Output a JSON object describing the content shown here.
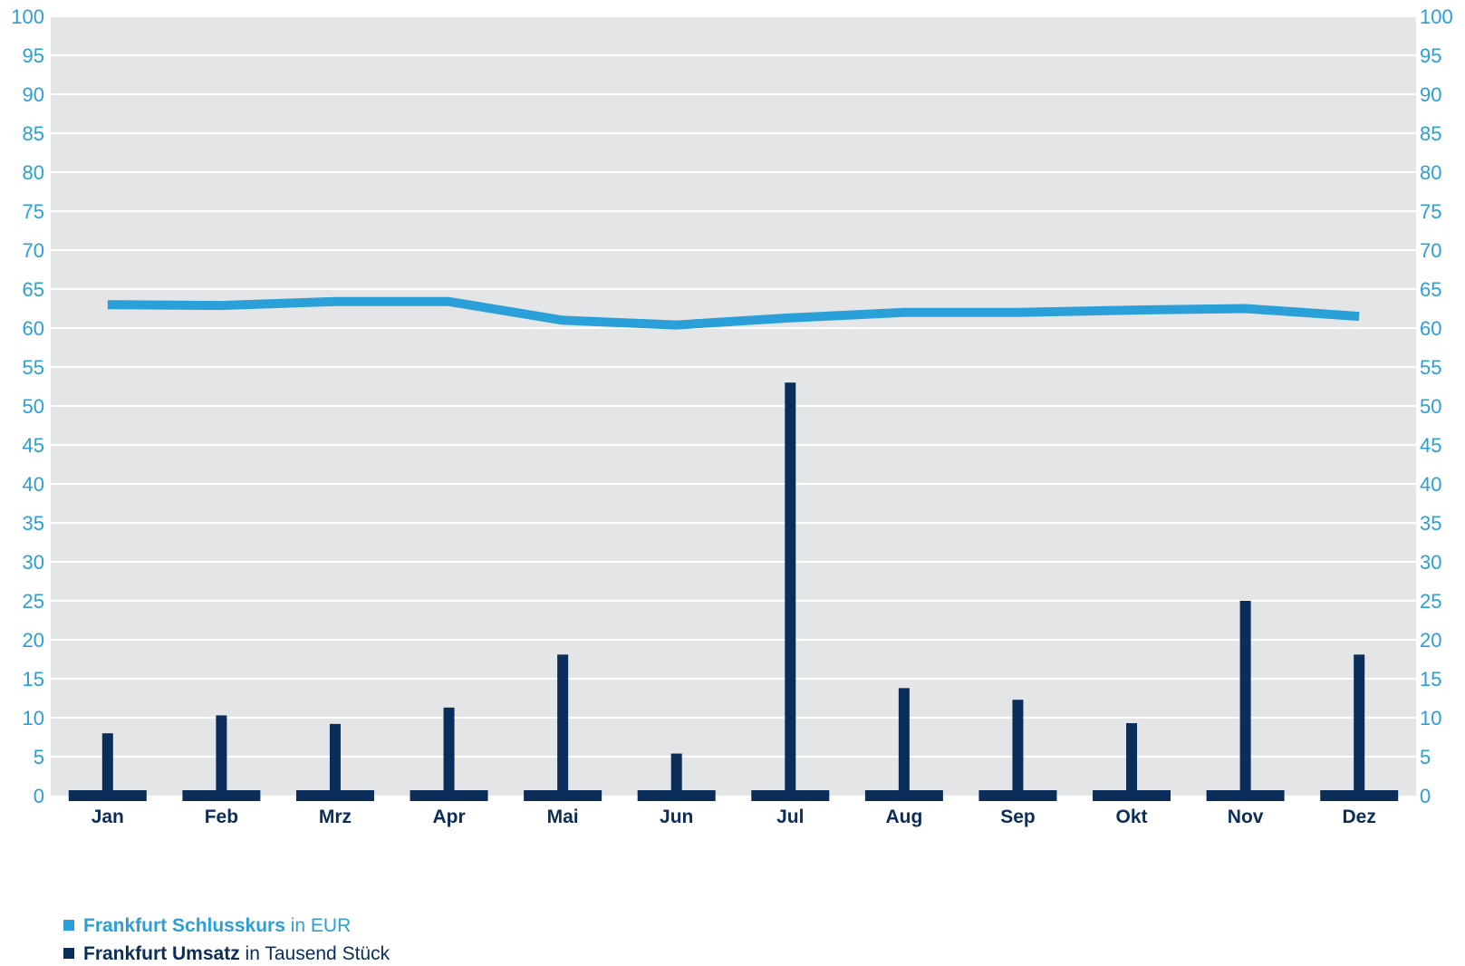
{
  "chart_data": {
    "type": "bar",
    "categories": [
      "Jan",
      "Feb",
      "Mrz",
      "Apr",
      "Mai",
      "Jun",
      "Jul",
      "Aug",
      "Sep",
      "Okt",
      "Nov",
      "Dez"
    ],
    "series": [
      {
        "name": "Frankfurt Schlusskurs",
        "unit": "in EUR",
        "type": "line",
        "color": "#2a9fd8",
        "values": [
          63.0,
          62.9,
          63.4,
          63.4,
          61.0,
          60.4,
          61.3,
          62.0,
          62.0,
          62.3,
          62.5,
          61.5
        ]
      },
      {
        "name": "Frankfurt Umsatz",
        "unit": "in Tausend Stück",
        "type": "bar",
        "color": "#0a2d5a",
        "values": [
          8,
          10.3,
          9.2,
          11.3,
          18.1,
          5.4,
          53,
          13.8,
          12.3,
          9.3,
          25,
          18.1
        ]
      }
    ],
    "yticks": [
      0,
      5,
      10,
      15,
      20,
      25,
      30,
      35,
      40,
      45,
      50,
      55,
      60,
      65,
      70,
      75,
      80,
      85,
      90,
      95,
      100
    ],
    "ylim": [
      0,
      100
    ],
    "y2lim": [
      0,
      100
    ],
    "grid": true,
    "legend_position": "bottom-left"
  },
  "legend": [
    {
      "bold": "Frankfurt Schlusskurs",
      "rest": " in EUR"
    },
    {
      "bold": "Frankfurt Umsatz",
      "rest": " in Tausend Stück"
    }
  ],
  "colors": {
    "background": "#e4e5e7",
    "grid": "#ffffff",
    "line": "#2a9fd8",
    "bar": "#0a2d5a",
    "ticks": "#2a9fd8"
  }
}
